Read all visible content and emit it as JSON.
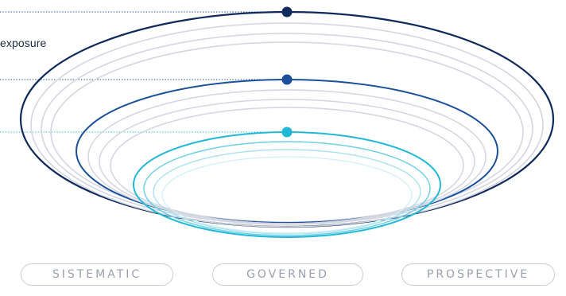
{
  "label": "exposure",
  "pills": [
    "SISTEMATIC",
    "GOVERNED",
    "PROSPECTIVE"
  ],
  "colors": {
    "outer": "#0f2a5c",
    "middle": "#1a4f9c",
    "inner": "#21b8d8",
    "grey_ring": "#d3d6e0",
    "dotted_outer": "#2a4f8f",
    "dotted_middle": "#1a4f9c",
    "dotted_inner": "#21b8d8",
    "label_text": "#1f2a44",
    "pill_border": "#c9ccd6",
    "pill_text": "#9aa0ad"
  }
}
